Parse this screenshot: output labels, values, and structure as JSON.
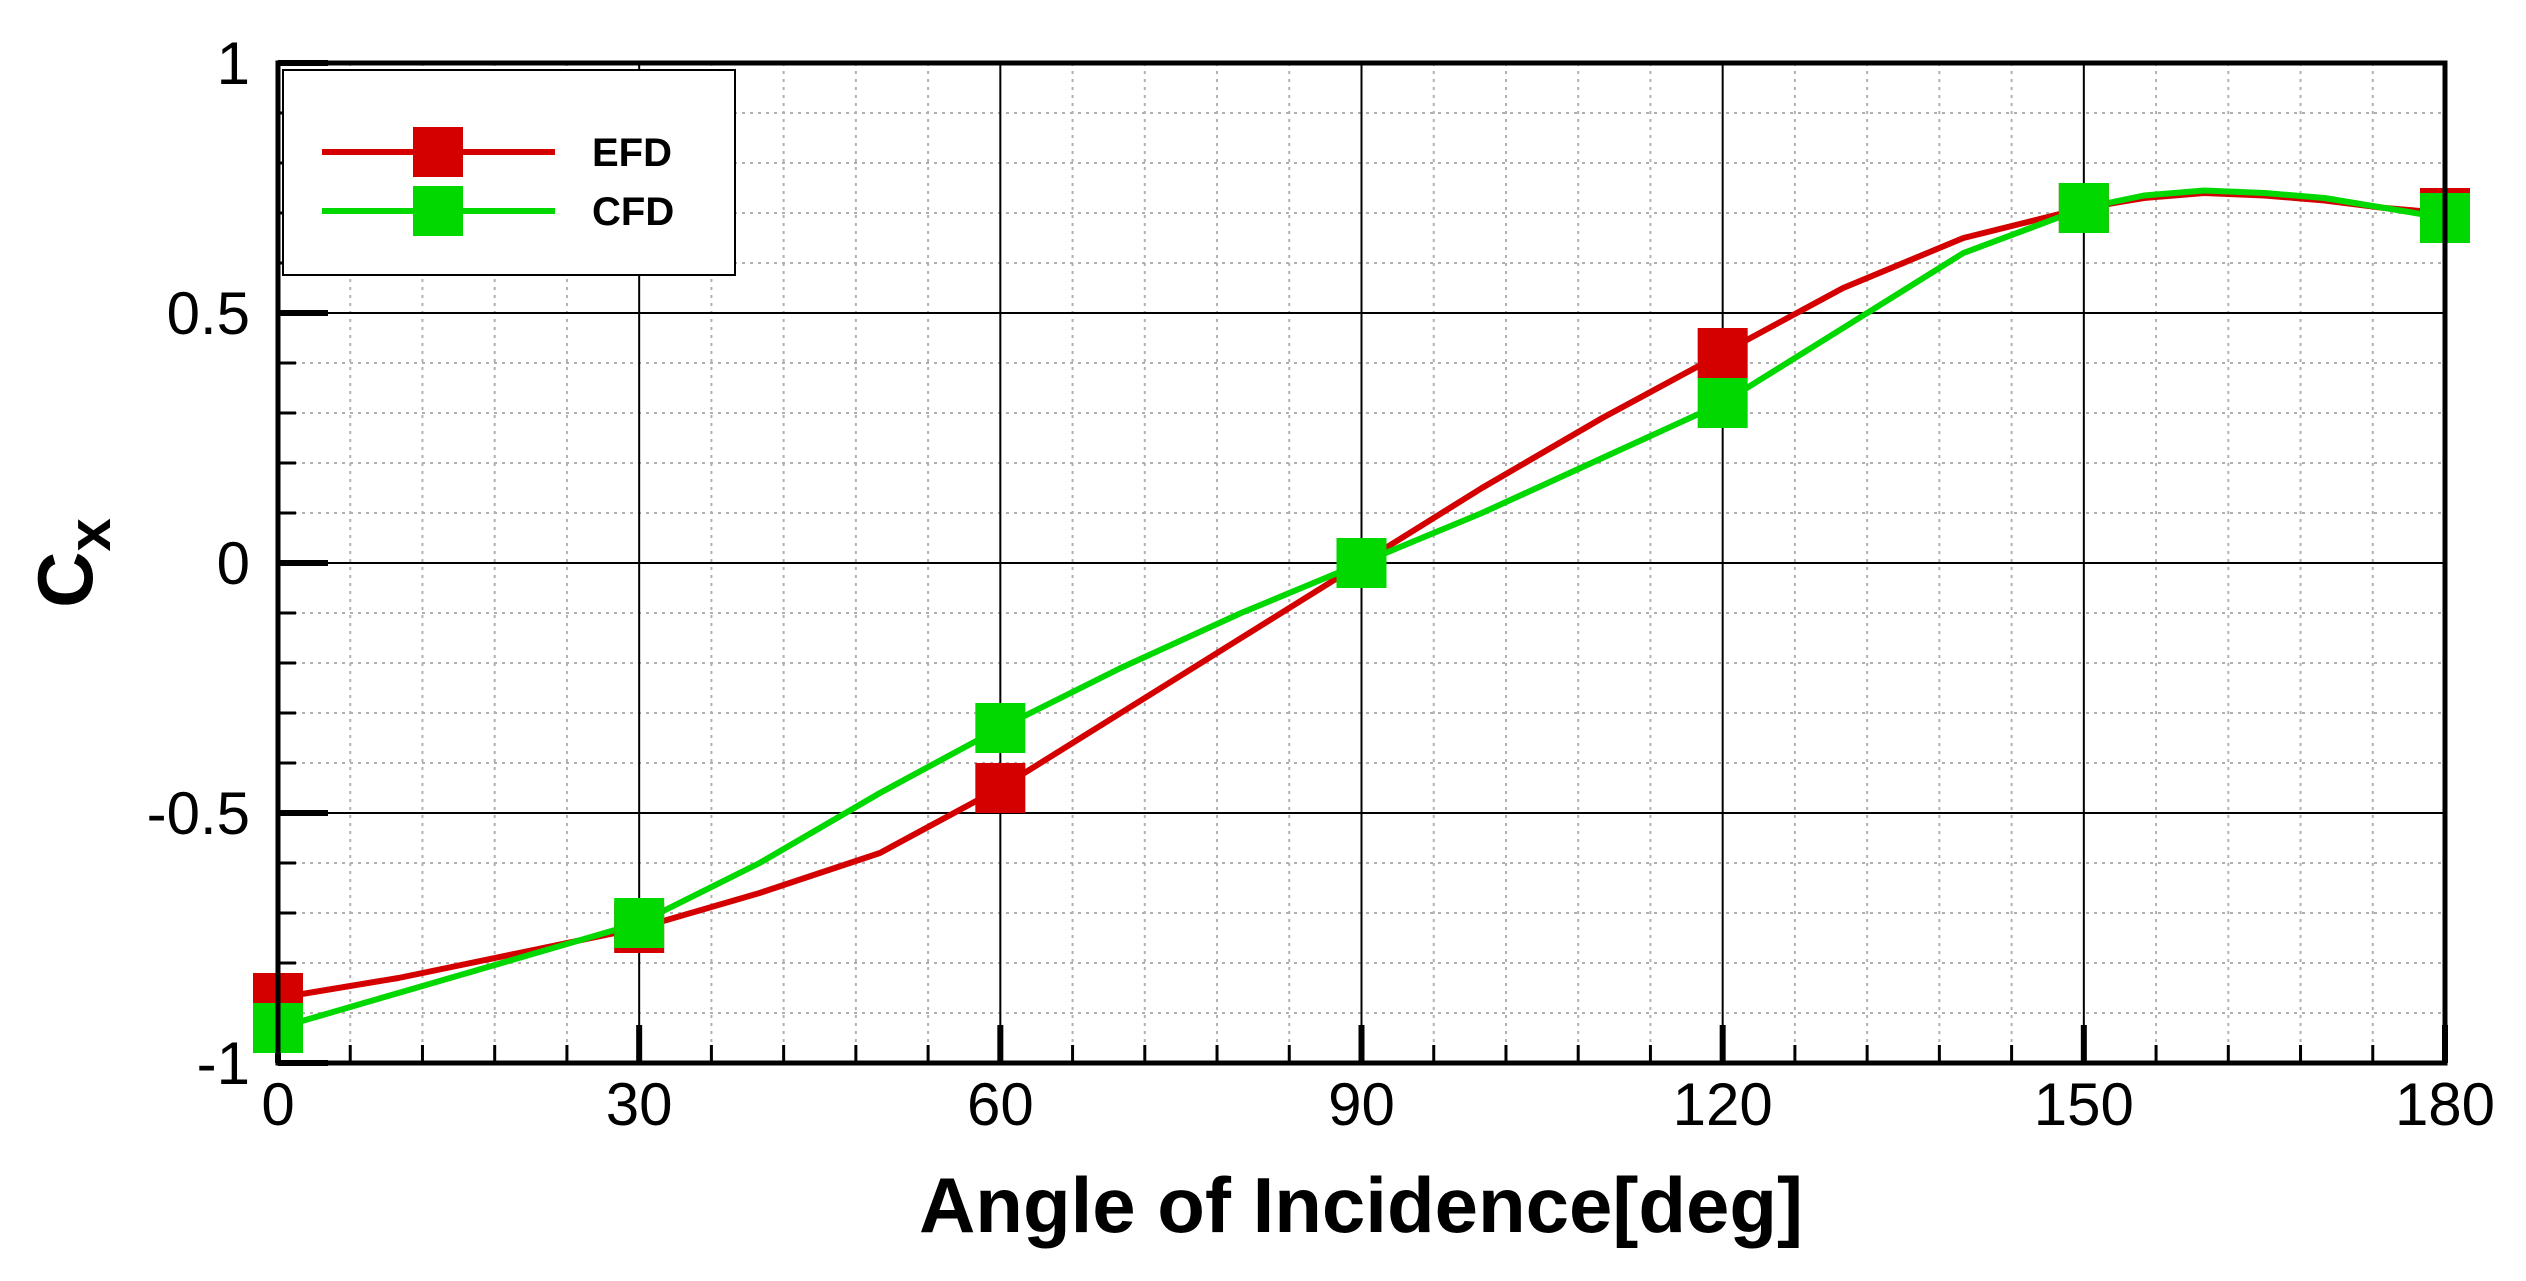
{
  "chart_data": {
    "type": "line",
    "title": "",
    "xlabel": "Angle of Incidence[deg]",
    "ylabel": "C",
    "ylabel_subscript": "x",
    "xlim": [
      0,
      180
    ],
    "ylim": [
      -1,
      1
    ],
    "x_ticks": [
      0,
      30,
      60,
      90,
      120,
      150,
      180
    ],
    "x_tick_labels": [
      "0",
      "30",
      "60",
      "90",
      "120",
      "150",
      "180"
    ],
    "y_ticks": [
      -1,
      -0.5,
      0,
      0.5,
      1
    ],
    "y_tick_labels": [
      "-1",
      "-0.5",
      "0",
      "0.5",
      "1"
    ],
    "grid": "major solid, minor dotted",
    "legend_position": "top-left",
    "series": [
      {
        "name": "EFD",
        "color": "#d40000",
        "x": [
          0,
          30,
          60,
          90,
          120,
          150,
          180
        ],
        "values": [
          -0.87,
          -0.73,
          -0.45,
          0.0,
          0.42,
          0.71,
          0.7
        ],
        "curve_x": [
          0,
          10,
          20,
          30,
          40,
          50,
          60,
          70,
          80,
          90,
          100,
          110,
          120,
          130,
          140,
          150,
          155,
          160,
          165,
          170,
          175,
          180
        ],
        "curve_y": [
          -0.87,
          -0.83,
          -0.78,
          -0.73,
          -0.66,
          -0.58,
          -0.45,
          -0.3,
          -0.15,
          0.0,
          0.15,
          0.29,
          0.42,
          0.55,
          0.65,
          0.71,
          0.73,
          0.74,
          0.735,
          0.725,
          0.71,
          0.7
        ]
      },
      {
        "name": "CFD",
        "color": "#00d800",
        "x": [
          0,
          30,
          60,
          90,
          120,
          150,
          180
        ],
        "values": [
          -0.93,
          -0.72,
          -0.33,
          0.0,
          0.32,
          0.71,
          0.69
        ],
        "curve_x": [
          0,
          10,
          20,
          30,
          40,
          50,
          60,
          70,
          80,
          90,
          100,
          110,
          120,
          130,
          140,
          150,
          155,
          160,
          165,
          170,
          175,
          180
        ],
        "curve_y": [
          -0.93,
          -0.86,
          -0.79,
          -0.72,
          -0.6,
          -0.46,
          -0.33,
          -0.21,
          -0.1,
          0.0,
          0.1,
          0.21,
          0.32,
          0.47,
          0.62,
          0.71,
          0.735,
          0.745,
          0.74,
          0.73,
          0.71,
          0.69
        ]
      }
    ]
  }
}
